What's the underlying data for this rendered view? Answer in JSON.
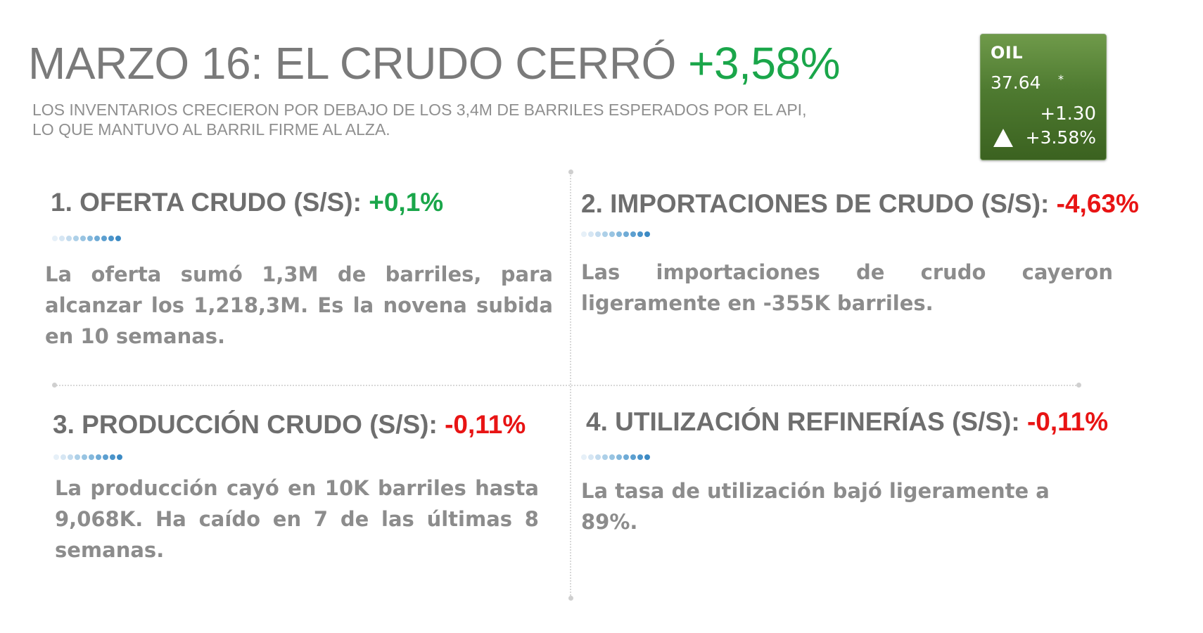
{
  "header": {
    "title_prefix": "MARZO 16: EL CRUDO CERRÓ",
    "title_change": "+3,58%",
    "subtitle_line1": "LOS INVENTARIOS CRECIERON POR DEBAJO DE LOS 3,4M DE BARRILES ESPERADOS POR EL API,",
    "subtitle_line2": "LO QUE MANTUVO AL BARRIL FIRME AL ALZA."
  },
  "ticker": {
    "symbol": "OIL",
    "price": "37.64",
    "price_mark": "*",
    "change": "+1.30",
    "change_pct": "+3.58%",
    "direction_icon": "triangle-up-icon",
    "bg_color": "#4e7a30"
  },
  "sections": [
    {
      "title": "1. OFERTA CRUDO (S/S):",
      "value": "+0,1%",
      "trend": "up",
      "text": "La oferta sumó 1,3M de barriles, para alcanzar los 1,218,3M. Es la novena subida en 10 semanas."
    },
    {
      "title": "2. IMPORTACIONES DE CRUDO (S/S):",
      "value": "-4,63%",
      "trend": "down",
      "text": "Las importaciones de crudo cayeron ligeramente en -355K barriles."
    },
    {
      "title": "3. PRODUCCIÓN CRUDO (S/S):",
      "value": "-0,11%",
      "trend": "down",
      "text": "La producción cayó en 10K barriles hasta 9,068K. Ha caído en 7 de las últimas 8 semanas."
    },
    {
      "title": "4. UTILIZACIÓN REFINERÍAS (S/S):",
      "value": "-0,11%",
      "trend": "down",
      "text": "La tasa de utilización bajó ligeramente a 89%."
    }
  ],
  "colors": {
    "up": "#1aa64a",
    "down": "#e81414",
    "text": "#8c8c8c",
    "heading": "#6e6e6e",
    "dots": [
      "#e6f0f8",
      "#d6e6f3",
      "#c3dbee",
      "#add0e8",
      "#98c4e2",
      "#84b8dc",
      "#6fabd6",
      "#5c9fd0",
      "#4b94ca",
      "#3c8ac4"
    ]
  }
}
